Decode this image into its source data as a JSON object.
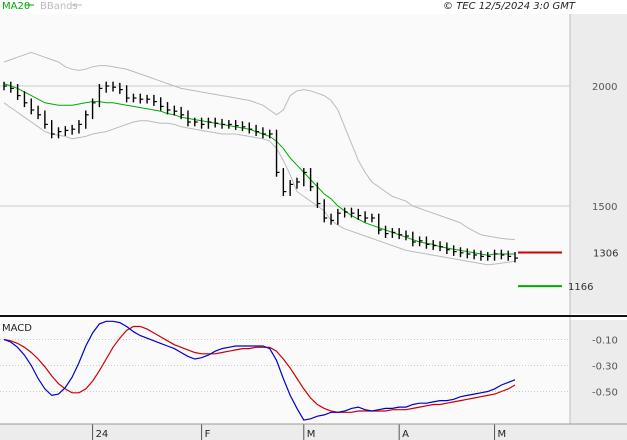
{
  "header": {
    "legend_ma": "MA20",
    "legend_bb": "BBands",
    "copyright": "© TEC 12/5/2024 3:0 GMT"
  },
  "colors": {
    "ma": "#00aa00",
    "bands": "#bbbbbb",
    "price": "#000000",
    "macd": "#0000cc",
    "signal": "#cc0000",
    "resistance": "#cc0000",
    "support": "#00aa00",
    "grid": "#cccccc",
    "panel_bg": "#fafafa",
    "side_bg": "#ececec"
  },
  "chart_data": [
    {
      "type": "line",
      "title": "",
      "x_tick_labels": [
        "24",
        "F",
        "M",
        "A",
        "M"
      ],
      "y_tick_labels": [
        "2000",
        "1500"
      ],
      "ylim": [
        1050,
        2300
      ],
      "grid": true,
      "legend": [
        {
          "name": "MA20",
          "color": "#00aa00"
        },
        {
          "name": "BBands",
          "color": "#bbbbbb"
        }
      ],
      "levels": [
        {
          "label": "1306",
          "value": 1306,
          "color": "#cc0000"
        },
        {
          "label": "1166",
          "value": 1166,
          "color": "#00aa00"
        }
      ],
      "series": [
        {
          "name": "price",
          "values": [
            2000,
            1990,
            1960,
            1930,
            1900,
            1880,
            1840,
            1800,
            1810,
            1815,
            1820,
            1840,
            1880,
            1930,
            1990,
            2000,
            1995,
            1985,
            1950,
            1950,
            1945,
            1945,
            1935,
            1915,
            1900,
            1895,
            1880,
            1850,
            1850,
            1840,
            1850,
            1845,
            1840,
            1840,
            1835,
            1830,
            1820,
            1810,
            1800,
            1800,
            1640,
            1560,
            1590,
            1600,
            1640,
            1580,
            1510,
            1450,
            1440,
            1470,
            1475,
            1470,
            1460,
            1450,
            1450,
            1400,
            1385,
            1390,
            1380,
            1375,
            1350,
            1355,
            1340,
            1335,
            1330,
            1318,
            1310,
            1305,
            1300,
            1296,
            1290,
            1290,
            1300,
            1296,
            1290,
            1283
          ]
        },
        {
          "name": "MA20",
          "values": [
            2010,
            2000,
            1990,
            1975,
            1960,
            1945,
            1930,
            1925,
            1920,
            1920,
            1920,
            1925,
            1930,
            1935,
            1935,
            1930,
            1930,
            1925,
            1920,
            1915,
            1910,
            1905,
            1900,
            1895,
            1885,
            1880,
            1870,
            1865,
            1860,
            1855,
            1850,
            1845,
            1840,
            1835,
            1830,
            1825,
            1820,
            1810,
            1800,
            1790,
            1770,
            1740,
            1700,
            1670,
            1640,
            1610,
            1580,
            1550,
            1530,
            1500,
            1480,
            1460,
            1445,
            1430,
            1420,
            1410,
            1400,
            1390,
            1380,
            1370,
            1360,
            1350,
            1345,
            1340,
            1330,
            1325,
            1320,
            1315,
            1310,
            1305,
            1300,
            1295,
            1300,
            1300,
            1300,
            1300
          ]
        },
        {
          "name": "BBands upper",
          "values": [
            2100,
            2110,
            2120,
            2130,
            2140,
            2130,
            2120,
            2110,
            2100,
            2080,
            2070,
            2065,
            2070,
            2080,
            2085,
            2085,
            2080,
            2075,
            2070,
            2060,
            2050,
            2040,
            2030,
            2020,
            2010,
            2000,
            1990,
            1985,
            1980,
            1975,
            1970,
            1965,
            1960,
            1955,
            1950,
            1945,
            1940,
            1930,
            1920,
            1900,
            1880,
            1900,
            1960,
            1980,
            1985,
            1980,
            1970,
            1960,
            1940,
            1900,
            1830,
            1760,
            1690,
            1640,
            1600,
            1580,
            1560,
            1540,
            1530,
            1520,
            1500,
            1490,
            1480,
            1470,
            1460,
            1450,
            1440,
            1430,
            1410,
            1395,
            1380,
            1375,
            1370,
            1365,
            1362,
            1360
          ]
        },
        {
          "name": "BBands lower",
          "values": [
            1930,
            1910,
            1890,
            1870,
            1850,
            1830,
            1810,
            1800,
            1795,
            1790,
            1780,
            1785,
            1790,
            1800,
            1805,
            1810,
            1820,
            1830,
            1840,
            1850,
            1855,
            1855,
            1850,
            1845,
            1845,
            1840,
            1830,
            1825,
            1820,
            1815,
            1810,
            1805,
            1800,
            1800,
            1800,
            1795,
            1790,
            1785,
            1780,
            1770,
            1740,
            1690,
            1630,
            1560,
            1540,
            1520,
            1500,
            1480,
            1440,
            1420,
            1405,
            1395,
            1385,
            1375,
            1365,
            1355,
            1345,
            1335,
            1325,
            1315,
            1310,
            1305,
            1300,
            1295,
            1290,
            1285,
            1280,
            1275,
            1270,
            1265,
            1260,
            1255,
            1258,
            1262,
            1266,
            1270
          ]
        }
      ]
    },
    {
      "type": "line",
      "title": "MACD",
      "y_tick_labels": [
        "-0.10",
        "-0.30",
        "-0.50"
      ],
      "ylim": [
        -0.75,
        0.05
      ],
      "grid": true,
      "series": [
        {
          "name": "MACD",
          "values": [
            -0.1,
            -0.12,
            -0.16,
            -0.22,
            -0.3,
            -0.4,
            -0.48,
            -0.53,
            -0.52,
            -0.47,
            -0.39,
            -0.28,
            -0.15,
            -0.05,
            0.02,
            0.04,
            0.04,
            0.03,
            0.0,
            -0.04,
            -0.07,
            -0.09,
            -0.11,
            -0.13,
            -0.15,
            -0.17,
            -0.2,
            -0.23,
            -0.25,
            -0.24,
            -0.22,
            -0.19,
            -0.17,
            -0.16,
            -0.15,
            -0.15,
            -0.15,
            -0.15,
            -0.15,
            -0.17,
            -0.26,
            -0.4,
            -0.53,
            -0.63,
            -0.72,
            -0.71,
            -0.69,
            -0.68,
            -0.66,
            -0.66,
            -0.65,
            -0.63,
            -0.62,
            -0.64,
            -0.65,
            -0.64,
            -0.63,
            -0.63,
            -0.62,
            -0.62,
            -0.6,
            -0.59,
            -0.59,
            -0.58,
            -0.57,
            -0.57,
            -0.56,
            -0.54,
            -0.53,
            -0.52,
            -0.51,
            -0.5,
            -0.48,
            -0.45,
            -0.43,
            -0.41
          ]
        },
        {
          "name": "Signal",
          "values": [
            -0.1,
            -0.11,
            -0.13,
            -0.16,
            -0.2,
            -0.25,
            -0.31,
            -0.38,
            -0.44,
            -0.48,
            -0.51,
            -0.51,
            -0.48,
            -0.42,
            -0.34,
            -0.25,
            -0.16,
            -0.09,
            -0.03,
            0.0,
            0.0,
            -0.02,
            -0.05,
            -0.08,
            -0.11,
            -0.14,
            -0.16,
            -0.18,
            -0.2,
            -0.21,
            -0.21,
            -0.21,
            -0.2,
            -0.19,
            -0.18,
            -0.17,
            -0.17,
            -0.16,
            -0.16,
            -0.16,
            -0.19,
            -0.25,
            -0.32,
            -0.4,
            -0.48,
            -0.55,
            -0.6,
            -0.63,
            -0.65,
            -0.66,
            -0.66,
            -0.66,
            -0.65,
            -0.65,
            -0.65,
            -0.65,
            -0.65,
            -0.64,
            -0.64,
            -0.64,
            -0.63,
            -0.62,
            -0.61,
            -0.6,
            -0.6,
            -0.59,
            -0.58,
            -0.57,
            -0.56,
            -0.55,
            -0.54,
            -0.53,
            -0.52,
            -0.5,
            -0.48,
            -0.45
          ]
        }
      ]
    }
  ]
}
